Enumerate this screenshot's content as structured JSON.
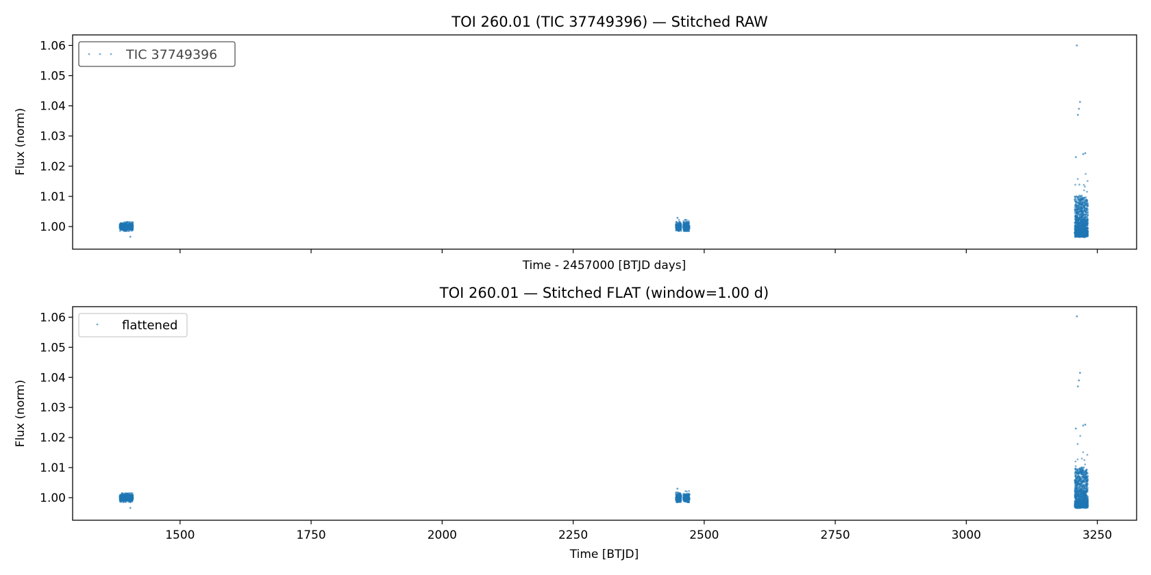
{
  "chart_data": [
    {
      "type": "scatter",
      "title": "TOI 260.01 (TIC 37749396) — Stitched RAW",
      "xlabel": "Time - 2457000 [BTJD days]",
      "ylabel": "Flux (norm)",
      "xlim": [
        1295,
        3325
      ],
      "ylim": [
        0.9925,
        1.0635
      ],
      "xticks": [
        1500,
        1750,
        2000,
        2250,
        2500,
        2750,
        3000,
        3250
      ],
      "x_tick_labels_shown": false,
      "yticks": [
        1.0,
        1.01,
        1.02,
        1.03,
        1.04,
        1.05,
        1.06
      ],
      "ytick_labels": [
        "1.00",
        "1.01",
        "1.02",
        "1.03",
        "1.04",
        "1.05",
        "1.06"
      ],
      "grid": false,
      "legend": {
        "position": "top-left",
        "entries": [
          "TIC 37749396"
        ]
      },
      "color": "#1f77b4",
      "series": [
        {
          "name": "TIC 37749396",
          "clusters": [
            {
              "x_range": [
                1385,
                1410
              ],
              "y_center": 1.0,
              "y_spread": [
                0.9985,
                1.0015
              ],
              "points": 600
            },
            {
              "x_range": [
                2446,
                2456
              ],
              "y_center": 1.0,
              "y_spread": [
                0.9985,
                1.0022
              ],
              "points": 220
            },
            {
              "x_range": [
                2460,
                2472
              ],
              "y_center": 1.0,
              "y_spread": [
                0.9985,
                1.0022
              ],
              "points": 220
            },
            {
              "x_range": [
                3207,
                3232
              ],
              "y_center": 1.0,
              "y_spread": [
                0.9965,
                1.009
              ],
              "points": 1200
            }
          ],
          "outliers": [
            {
              "x": 3211,
              "y": 1.06
            },
            {
              "x": 3217,
              "y": 1.0413
            },
            {
              "x": 3215,
              "y": 1.039
            },
            {
              "x": 3213,
              "y": 1.037
            },
            {
              "x": 3227,
              "y": 1.0243
            },
            {
              "x": 3223,
              "y": 1.024
            },
            {
              "x": 3209,
              "y": 1.023
            },
            {
              "x": 1405,
              "y": 0.9966
            },
            {
              "x": 2449,
              "y": 1.0029
            }
          ]
        }
      ]
    },
    {
      "type": "scatter",
      "title": "TOI 260.01 — Stitched FLAT (window=1.00 d)",
      "xlabel": "Time [BTJD]",
      "ylabel": "Flux (norm)",
      "xlim": [
        1295,
        3325
      ],
      "ylim": [
        0.9925,
        1.0635
      ],
      "xticks": [
        1500,
        1750,
        2000,
        2250,
        2500,
        2750,
        3000,
        3250
      ],
      "xtick_labels": [
        "1500",
        "1750",
        "2000",
        "2250",
        "2500",
        "2750",
        "3000",
        "3250"
      ],
      "yticks": [
        1.0,
        1.01,
        1.02,
        1.03,
        1.04,
        1.05,
        1.06
      ],
      "ytick_labels": [
        "1.00",
        "1.01",
        "1.02",
        "1.03",
        "1.04",
        "1.05",
        "1.06"
      ],
      "grid": false,
      "legend": {
        "position": "top-left",
        "entries": [
          "flattened"
        ]
      },
      "color": "#1f77b4",
      "series": [
        {
          "name": "flattened",
          "clusters": [
            {
              "x_range": [
                1385,
                1410
              ],
              "y_center": 1.0,
              "y_spread": [
                0.9985,
                1.0015
              ],
              "points": 600
            },
            {
              "x_range": [
                2446,
                2456
              ],
              "y_center": 1.0,
              "y_spread": [
                0.9985,
                1.0022
              ],
              "points": 220
            },
            {
              "x_range": [
                2460,
                2472
              ],
              "y_center": 1.0,
              "y_spread": [
                0.9985,
                1.0022
              ],
              "points": 220
            },
            {
              "x_range": [
                3207,
                3232
              ],
              "y_center": 1.0,
              "y_spread": [
                0.9965,
                1.009
              ],
              "points": 1200
            }
          ],
          "outliers": [
            {
              "x": 3211,
              "y": 1.0603
            },
            {
              "x": 3217,
              "y": 1.0415
            },
            {
              "x": 3215,
              "y": 1.039
            },
            {
              "x": 3213,
              "y": 1.037
            },
            {
              "x": 3227,
              "y": 1.0243
            },
            {
              "x": 3223,
              "y": 1.024
            },
            {
              "x": 3209,
              "y": 1.023
            },
            {
              "x": 1405,
              "y": 0.9966
            },
            {
              "x": 2449,
              "y": 1.003
            }
          ]
        }
      ]
    }
  ]
}
